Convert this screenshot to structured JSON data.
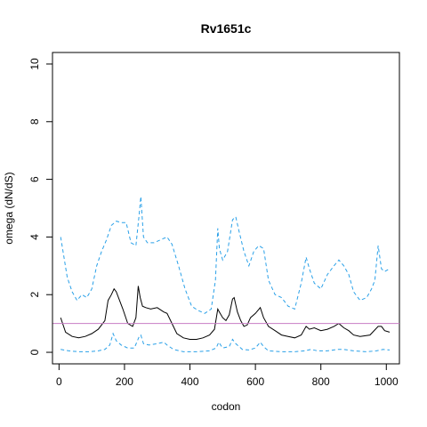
{
  "chart_data": {
    "type": "line",
    "title": "Rv1651c",
    "xlabel": "codon",
    "ylabel": "omega (dN/dS)",
    "xlim": [
      -20,
      1040
    ],
    "ylim": [
      -0.4,
      10.4
    ],
    "xticks": [
      0,
      200,
      400,
      600,
      800,
      1000
    ],
    "yticks": [
      0,
      2,
      4,
      6,
      8,
      10
    ],
    "reference_line": {
      "y": 1,
      "color": "#c77bc4"
    },
    "grid": false,
    "colors": {
      "estimate": "#000000",
      "interval": "#29a0e8"
    },
    "series": [
      {
        "style": "solid",
        "x": [
          5,
          20,
          40,
          60,
          80,
          100,
          120,
          140,
          150,
          160,
          168,
          175,
          185,
          195,
          210,
          225,
          235,
          242,
          248,
          255,
          265,
          280,
          300,
          320,
          330,
          345,
          360,
          380,
          400,
          420,
          440,
          460,
          475,
          485,
          490,
          500,
          510,
          520,
          530,
          535,
          545,
          555,
          565,
          575,
          585,
          600,
          615,
          625,
          640,
          660,
          680,
          700,
          720,
          740,
          755,
          765,
          780,
          800,
          820,
          840,
          855,
          870,
          885,
          900,
          920,
          950,
          975,
          985,
          995,
          1010
        ],
        "y": [
          1.2,
          0.7,
          0.55,
          0.5,
          0.55,
          0.65,
          0.8,
          1.1,
          1.8,
          2.0,
          2.2,
          2.1,
          1.8,
          1.5,
          1.0,
          0.9,
          1.2,
          2.3,
          1.9,
          1.6,
          1.55,
          1.5,
          1.55,
          1.4,
          1.35,
          1.0,
          0.65,
          0.5,
          0.45,
          0.45,
          0.5,
          0.6,
          0.8,
          1.5,
          1.4,
          1.2,
          1.1,
          1.3,
          1.85,
          1.9,
          1.4,
          1.1,
          0.9,
          0.95,
          1.2,
          1.35,
          1.55,
          1.2,
          0.9,
          0.75,
          0.6,
          0.55,
          0.5,
          0.6,
          0.9,
          0.8,
          0.85,
          0.75,
          0.8,
          0.9,
          1.0,
          0.85,
          0.75,
          0.6,
          0.55,
          0.6,
          0.9,
          0.9,
          0.75,
          0.7
        ]
      },
      {
        "style": "dashed",
        "x": [
          5,
          15,
          25,
          40,
          55,
          70,
          85,
          100,
          115,
          130,
          145,
          160,
          175,
          190,
          205,
          220,
          235,
          245,
          250,
          258,
          270,
          290,
          310,
          330,
          345,
          365,
          385,
          405,
          425,
          445,
          465,
          478,
          485,
          490,
          500,
          515,
          530,
          540,
          550,
          565,
          580,
          595,
          610,
          625,
          640,
          660,
          680,
          700,
          720,
          740,
          755,
          765,
          780,
          800,
          820,
          840,
          855,
          870,
          885,
          900,
          920,
          940,
          955,
          965,
          975,
          985,
          995,
          1010
        ],
        "y": [
          4.0,
          3.3,
          2.6,
          2.1,
          1.8,
          2.0,
          1.9,
          2.2,
          3.0,
          3.5,
          3.9,
          4.4,
          4.55,
          4.5,
          4.5,
          3.8,
          3.7,
          4.8,
          5.4,
          4.0,
          3.8,
          3.8,
          3.9,
          4.0,
          3.75,
          3.0,
          2.2,
          1.6,
          1.45,
          1.35,
          1.5,
          2.5,
          4.3,
          3.6,
          3.2,
          3.5,
          4.6,
          4.7,
          4.2,
          3.5,
          3.0,
          3.5,
          3.7,
          3.6,
          2.5,
          2.0,
          1.9,
          1.6,
          1.5,
          2.4,
          3.3,
          2.9,
          2.4,
          2.2,
          2.7,
          3.0,
          3.2,
          3.0,
          2.7,
          2.1,
          1.8,
          1.9,
          2.2,
          2.5,
          3.7,
          2.9,
          2.8,
          2.9
        ]
      },
      {
        "style": "dashed",
        "x": [
          5,
          30,
          60,
          90,
          120,
          140,
          155,
          165,
          175,
          190,
          210,
          230,
          245,
          250,
          258,
          275,
          300,
          320,
          330,
          350,
          380,
          420,
          460,
          480,
          488,
          500,
          520,
          530,
          540,
          560,
          580,
          600,
          615,
          625,
          640,
          680,
          720,
          750,
          770,
          790,
          820,
          850,
          870,
          900,
          940,
          970,
          990,
          1010
        ],
        "y": [
          0.1,
          0.05,
          0.02,
          0.02,
          0.05,
          0.1,
          0.25,
          0.65,
          0.4,
          0.25,
          0.15,
          0.15,
          0.55,
          0.6,
          0.3,
          0.25,
          0.3,
          0.35,
          0.25,
          0.1,
          0.02,
          0.02,
          0.05,
          0.15,
          0.35,
          0.15,
          0.2,
          0.45,
          0.3,
          0.1,
          0.08,
          0.15,
          0.35,
          0.2,
          0.05,
          0.02,
          0.02,
          0.05,
          0.1,
          0.05,
          0.05,
          0.1,
          0.1,
          0.05,
          0.02,
          0.05,
          0.1,
          0.08
        ]
      }
    ]
  }
}
